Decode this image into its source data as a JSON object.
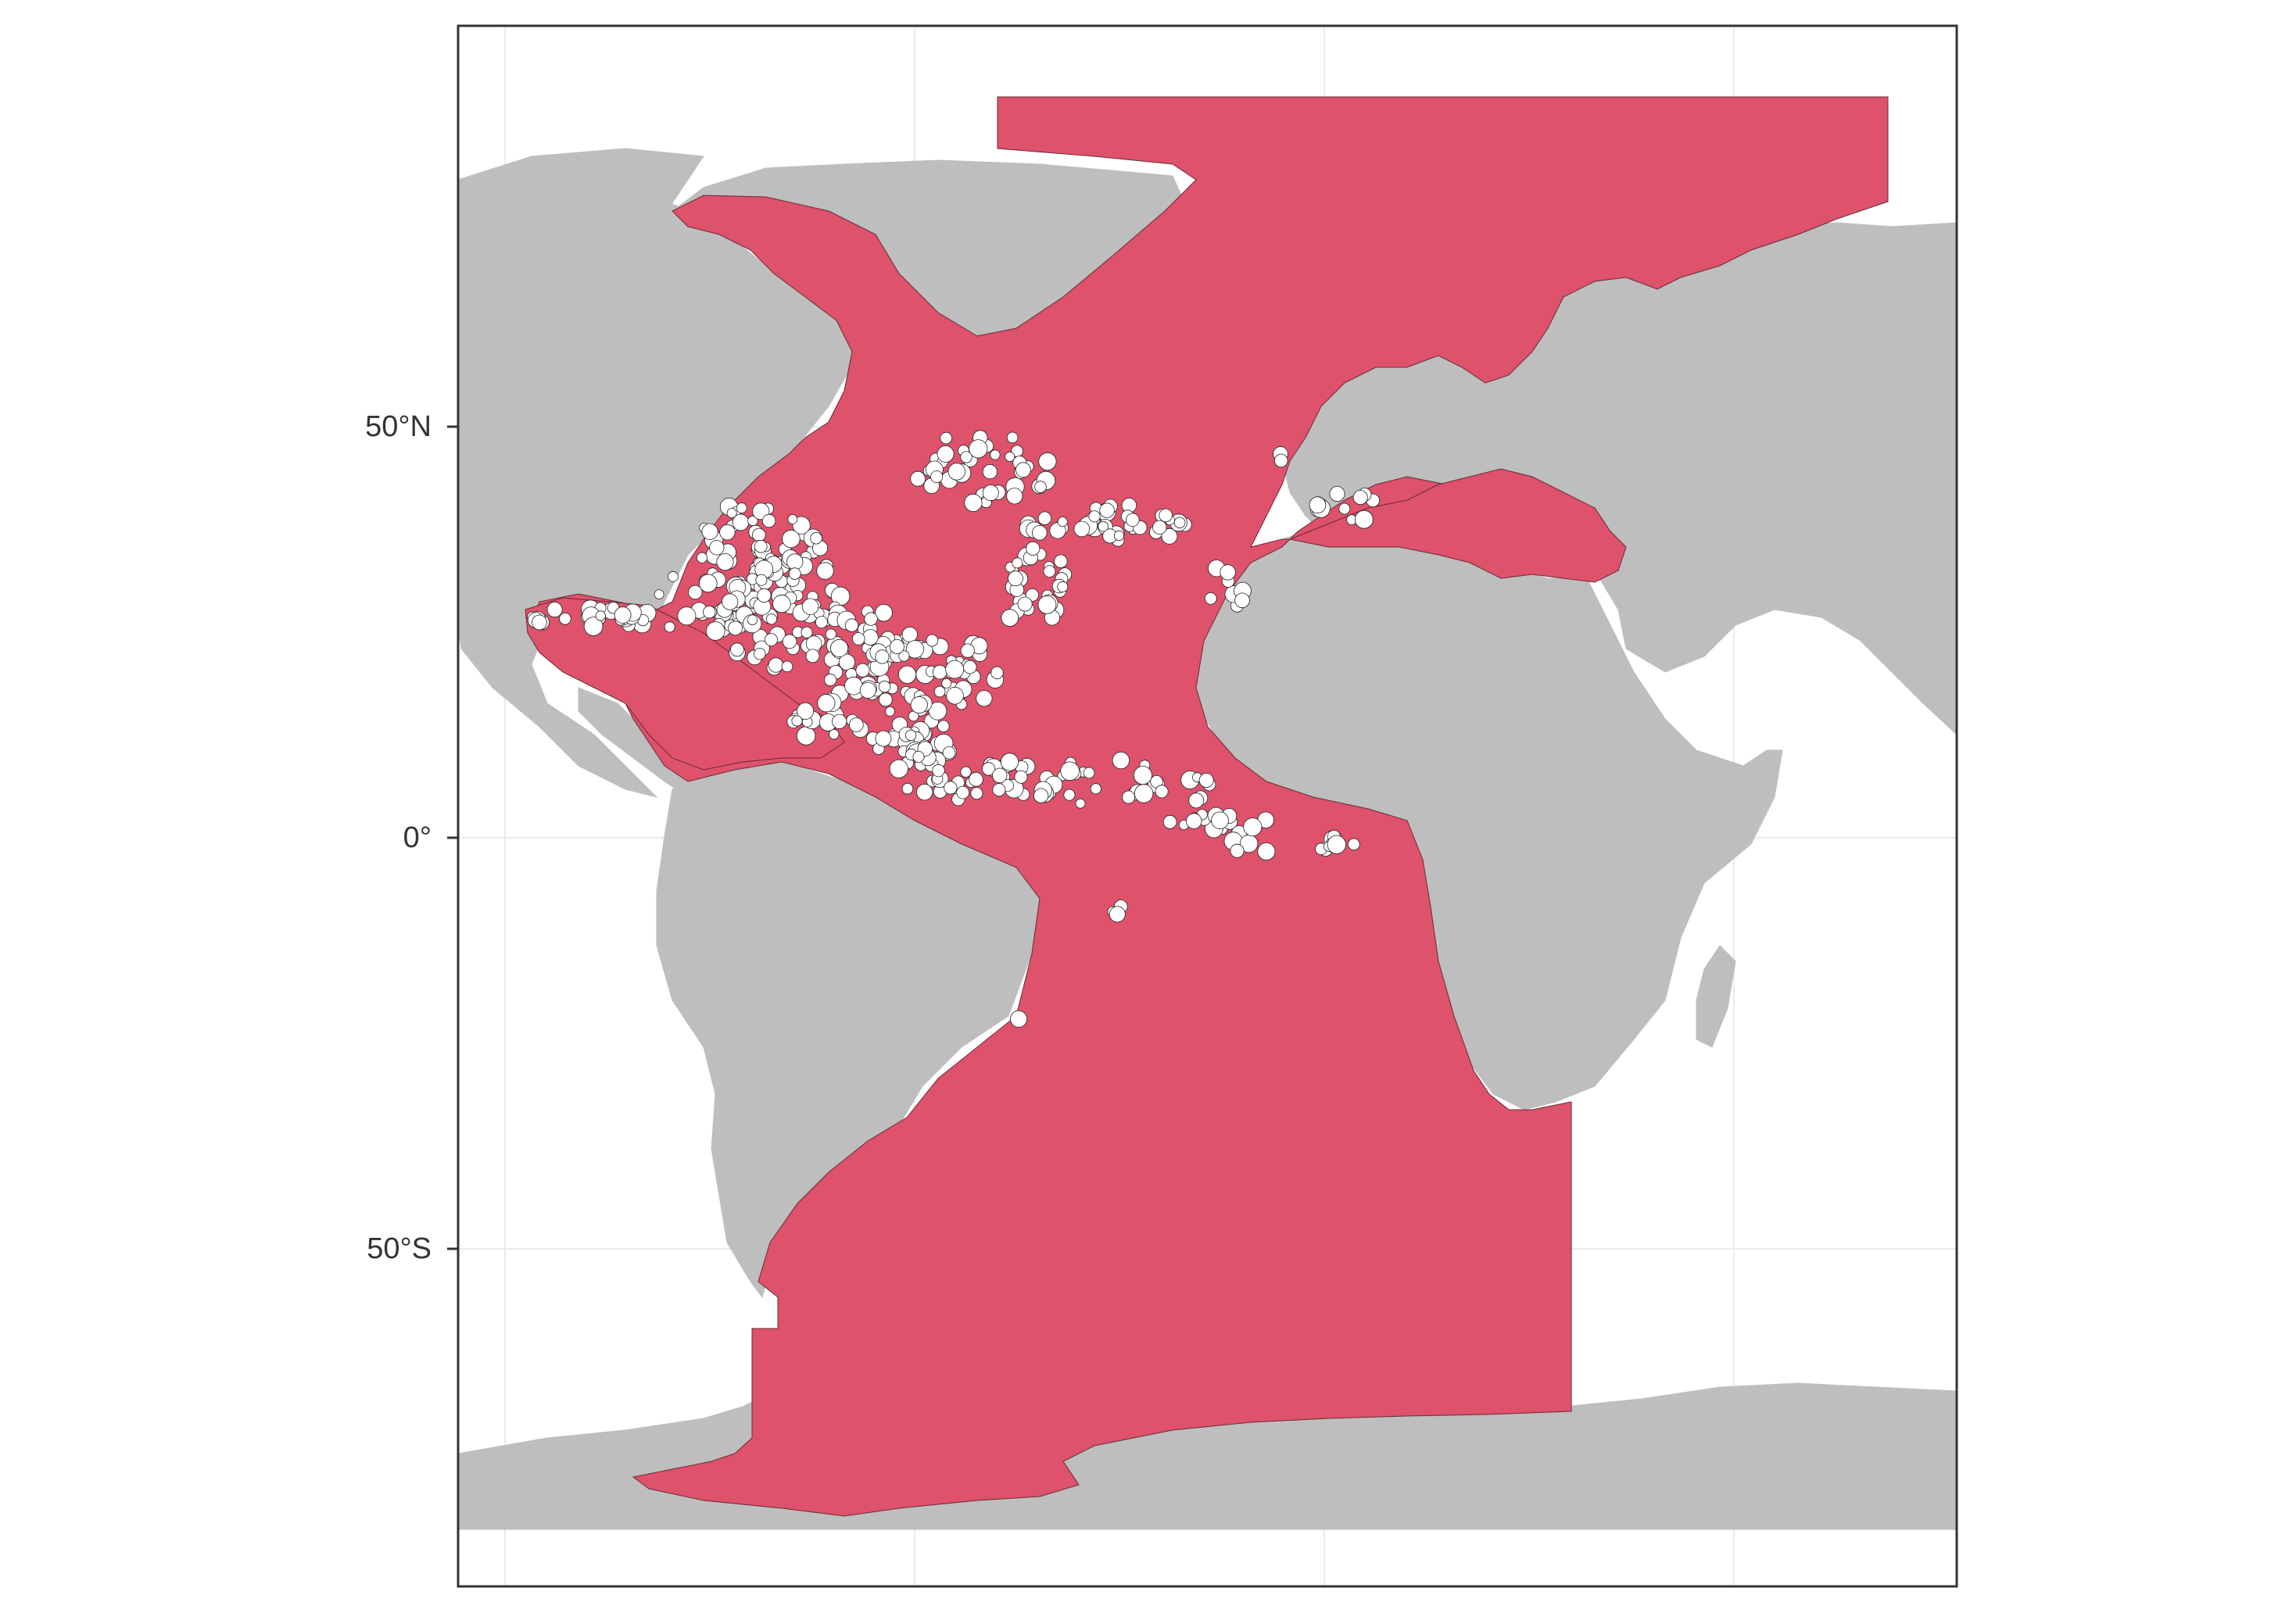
{
  "map": {
    "y_axis": {
      "ticks": [
        {
          "label": "50°N",
          "lat": 50
        },
        {
          "label": "0°",
          "lat": 0
        },
        {
          "label": "50°S",
          "lat": -50
        }
      ]
    },
    "colors": {
      "panel_background": "#ffffff",
      "panel_border": "#333333",
      "gridline": "#ebebeb",
      "land": "#bebebe",
      "study_area": "#de526b",
      "occurrence_point": "#ffffff",
      "point_outline": "#222222"
    },
    "layers": [
      "land-basemap",
      "study-area-polygon",
      "occurrence-points"
    ]
  }
}
